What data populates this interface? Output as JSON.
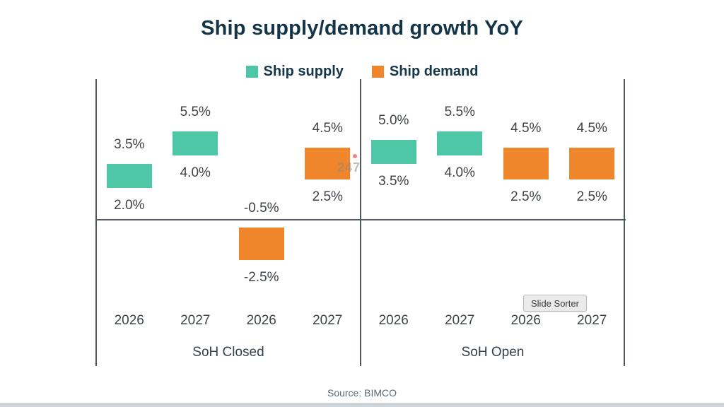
{
  "chart_data": {
    "type": "bar",
    "subtype": "floating-range-columns",
    "title": "Ship supply/demand growth YoY",
    "unit": "%",
    "ylim": [
      -9,
      8.8
    ],
    "grid": false,
    "legend_position": "top",
    "frame_color": "#50575e",
    "series": [
      {
        "name": "Ship supply",
        "color": "#4ec7a6"
      },
      {
        "name": "Ship demand",
        "color": "#f0862b"
      }
    ],
    "groups": [
      {
        "label": "SoH Closed",
        "bars": [
          {
            "year": "2026",
            "series": "Ship supply",
            "low": 2.0,
            "high": 3.5
          },
          {
            "year": "2027",
            "series": "Ship supply",
            "low": 4.0,
            "high": 5.5
          },
          {
            "year": "2026",
            "series": "Ship demand",
            "low": -2.5,
            "high": -0.5
          },
          {
            "year": "2027",
            "series": "Ship demand",
            "low": 2.5,
            "high": 4.5
          }
        ]
      },
      {
        "label": "SoH Open",
        "bars": [
          {
            "year": "2026",
            "series": "Ship supply",
            "low": 3.5,
            "high": 5.0
          },
          {
            "year": "2027",
            "series": "Ship supply",
            "low": 4.0,
            "high": 5.5
          },
          {
            "year": "2026",
            "series": "Ship demand",
            "low": 2.5,
            "high": 4.5
          },
          {
            "year": "2027",
            "series": "Ship demand",
            "low": 2.5,
            "high": 4.5
          }
        ]
      }
    ]
  },
  "tooltip": {
    "label": "Slide Sorter"
  },
  "watermark": {
    "text": "247"
  },
  "source": {
    "label": "Source: BIMCO"
  }
}
